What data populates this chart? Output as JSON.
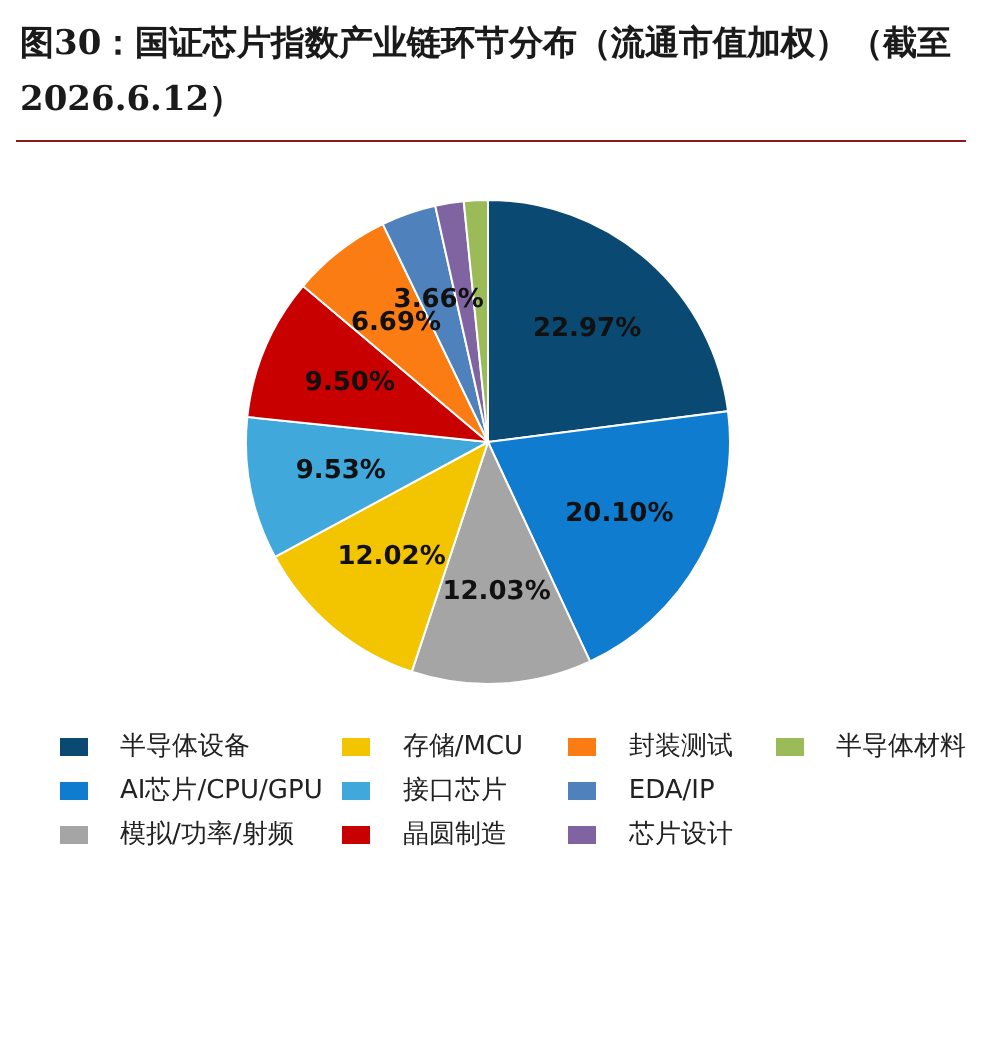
{
  "chart_data": {
    "type": "pie",
    "title": "图30：国证芯片指数产业链环节分布（流通市值加权）（截至 2026.6.12）",
    "categories": [
      "半导体设备",
      "AI芯片/CPU/GPU",
      "模拟/功率/射频",
      "存储/MCU",
      "接口芯片",
      "晶圆制造",
      "封装测试",
      "EDA/IP",
      "芯片设计",
      "半导体材料"
    ],
    "values": [
      22.97,
      20.1,
      12.03,
      12.02,
      9.53,
      9.5,
      6.69,
      3.66,
      1.9,
      1.6
    ],
    "value_labels": [
      "22.97%",
      "20.10%",
      "12.03%",
      "12.02%",
      "9.53%",
      "9.50%",
      "6.69%",
      "3.66%",
      null,
      null
    ],
    "colors": [
      "#0a4a72",
      "#0f7ccf",
      "#a5a5a5",
      "#f2c500",
      "#41a8dc",
      "#c80000",
      "#fb7c12",
      "#4f81bd",
      "#8064a2",
      "#9bbb59"
    ],
    "legend": "bottom"
  }
}
